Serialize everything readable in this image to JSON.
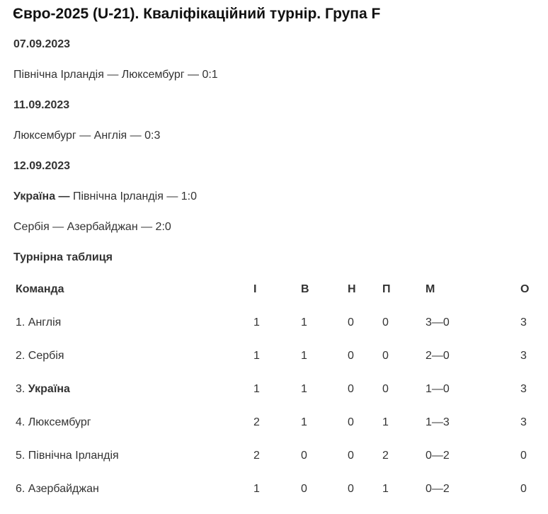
{
  "title": "Євро-2025 (U-21). Кваліфікаційний турнір. Група F",
  "days": [
    {
      "date": "07.09.2023",
      "matches": [
        {
          "home": "Північна Ірландія",
          "away": "Люксембург",
          "score": "0:1"
        }
      ]
    },
    {
      "date": "11.09.2023",
      "matches": [
        {
          "home": "Люксембург",
          "away": "Англія",
          "score": "0:3"
        }
      ]
    },
    {
      "date": "12.09.2023",
      "matches": [
        {
          "home": "Україна",
          "away": "Північна Ірландія",
          "score": "1:0"
        },
        {
          "home": "Сербія",
          "away": "Азербайджан",
          "score": "2:0"
        }
      ]
    }
  ],
  "sep": " — ",
  "standings": {
    "heading": "Турнірна таблиця",
    "columns": [
      "Команда",
      "І",
      "В",
      "Н",
      "П",
      "М",
      "О"
    ],
    "rows": [
      {
        "pos": "1.",
        "team": "Англія",
        "p": "1",
        "w": "1",
        "d": "0",
        "l": "0",
        "g": "3—0",
        "pts": "3"
      },
      {
        "pos": "2.",
        "team": "Сербія",
        "p": "1",
        "w": "1",
        "d": "0",
        "l": "0",
        "g": "2—0",
        "pts": "3"
      },
      {
        "pos": "3.",
        "team": "Україна",
        "p": "1",
        "w": "1",
        "d": "0",
        "l": "0",
        "g": "1—0",
        "pts": "3"
      },
      {
        "pos": "4.",
        "team": "Люксембург",
        "p": "2",
        "w": "1",
        "d": "0",
        "l": "1",
        "g": "1—3",
        "pts": "3"
      },
      {
        "pos": "5.",
        "team": "Північна Ірландія",
        "p": "2",
        "w": "0",
        "d": "0",
        "l": "2",
        "g": "0—2",
        "pts": "0"
      },
      {
        "pos": "6.",
        "team": "Азербайджан",
        "p": "1",
        "w": "0",
        "d": "0",
        "l": "1",
        "g": "0—2",
        "pts": "0"
      }
    ]
  }
}
